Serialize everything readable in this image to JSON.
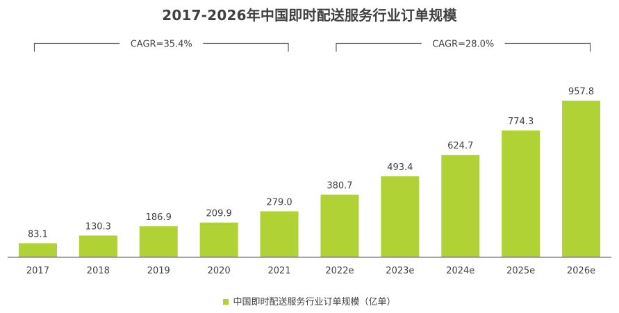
{
  "chart_data": {
    "type": "bar",
    "title": "2017-2026年中国即时配送服务行业订单规模",
    "categories": [
      "2017",
      "2018",
      "2019",
      "2020",
      "2021",
      "2022e",
      "2023e",
      "2024e",
      "2025e",
      "2026e"
    ],
    "series": [
      {
        "name": "中国即时配送服务行业订单规模（亿单）",
        "values": [
          83.1,
          130.3,
          186.9,
          209.9,
          279.0,
          380.7,
          493.4,
          624.7,
          774.3,
          957.8
        ],
        "value_labels": [
          "83.1",
          "130.3",
          "186.9",
          "209.9",
          "279.0",
          "380.7",
          "493.4",
          "624.7",
          "774.3",
          "957.8"
        ]
      }
    ],
    "annotations": [
      {
        "text": "CAGR=35.4%",
        "from": "2017",
        "to": "2021"
      },
      {
        "text": "CAGR=28.0%",
        "from": "2022e",
        "to": "2026e"
      }
    ],
    "ylim": [
      0,
      1030
    ],
    "y_axis_visible": false,
    "grid": false,
    "legend_position": "bottom",
    "bar_color": "#b0d235"
  }
}
